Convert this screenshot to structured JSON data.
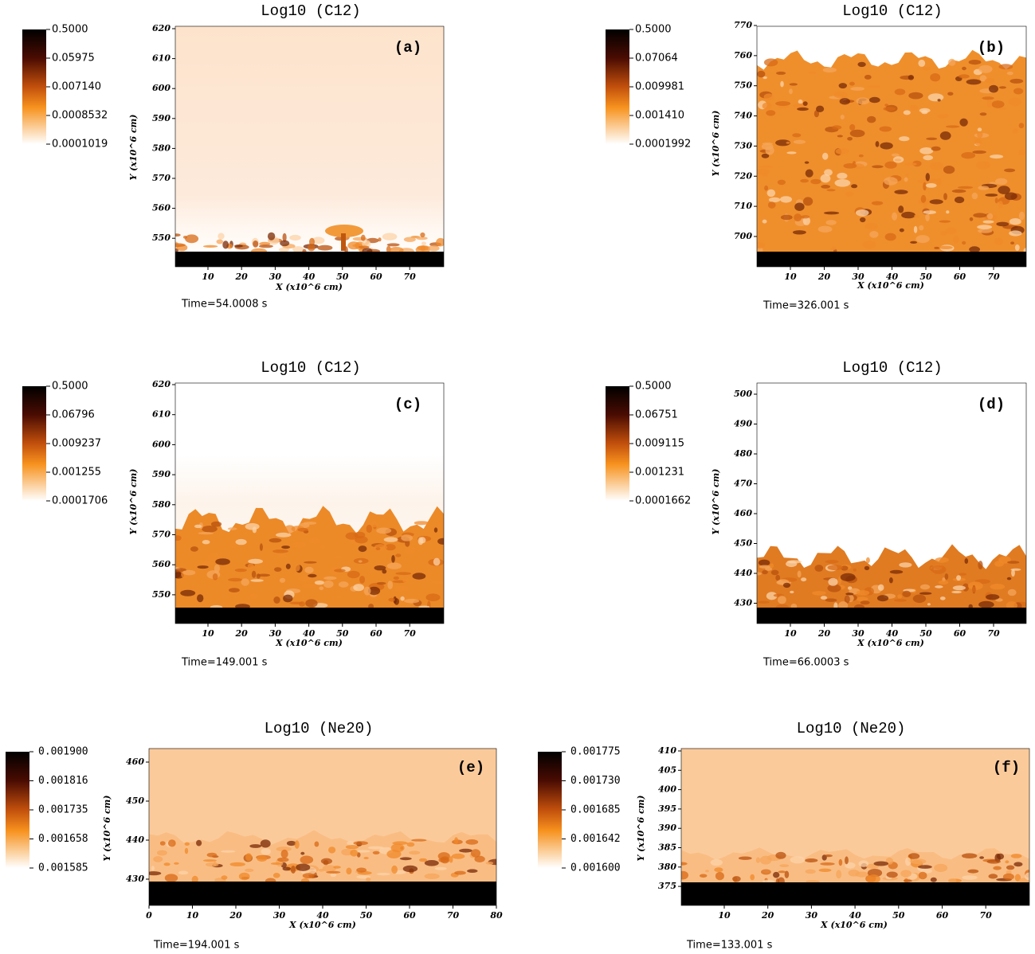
{
  "panels": [
    {
      "title": "Log10 (C12)",
      "label": "(a)",
      "time": "Time=54.0008 s",
      "x_label": "X (x10^6 cm)",
      "y_label": "Y (x10^6 cm)",
      "colorbar": [
        "0.5000",
        "0.05975",
        "0.007140",
        "0.0008532",
        "0.0001019"
      ],
      "yticks": [
        620,
        610,
        600,
        590,
        580,
        570,
        560,
        550
      ],
      "xticks": [
        10,
        20,
        30,
        40,
        50,
        60,
        70
      ]
    },
    {
      "title": "Log10 (C12)",
      "label": "(b)",
      "time": "Time=326.001 s",
      "x_label": "X (x10^6 cm)",
      "y_label": "Y (x10^6 cm)",
      "colorbar": [
        "0.5000",
        "0.07064",
        "0.009981",
        "0.001410",
        "0.0001992"
      ],
      "yticks": [
        770,
        760,
        750,
        740,
        730,
        720,
        710,
        700
      ],
      "xticks": [
        10,
        20,
        30,
        40,
        50,
        60,
        70
      ]
    },
    {
      "title": "Log10 (C12)",
      "label": "(c)",
      "time": "Time=149.001 s",
      "x_label": "X (x10^6 cm)",
      "y_label": "Y (x10^6 cm)",
      "colorbar": [
        "0.5000",
        "0.06796",
        "0.009237",
        "0.001255",
        "0.0001706"
      ],
      "yticks": [
        620,
        610,
        600,
        590,
        580,
        570,
        560,
        550
      ],
      "xticks": [
        10,
        20,
        30,
        40,
        50,
        60,
        70
      ]
    },
    {
      "title": "Log10 (C12)",
      "label": "(d)",
      "time": "Time=66.0003 s",
      "x_label": "X (x10^6 cm)",
      "y_label": "Y (x10^6 cm)",
      "colorbar": [
        "0.5000",
        "0.06751",
        "0.009115",
        "0.001231",
        "0.0001662"
      ],
      "yticks": [
        500,
        490,
        480,
        470,
        460,
        450,
        440,
        430
      ],
      "xticks": [
        10,
        20,
        30,
        40,
        50,
        60,
        70
      ]
    },
    {
      "title": "Log10 (Ne20)",
      "label": "(e)",
      "time": "Time=194.001 s",
      "x_label": "X (x10^6 cm)",
      "y_label": "Y (x10^6 cm)",
      "colorbar": [
        "0.001900",
        "0.001816",
        "0.001735",
        "0.001658",
        "0.001585"
      ],
      "yticks": [
        460,
        450,
        440,
        430
      ],
      "xticks": [
        0,
        10,
        20,
        30,
        40,
        50,
        60,
        70,
        80
      ]
    },
    {
      "title": "Log10 (Ne20)",
      "label": "(f)",
      "time": "Time=133.001 s",
      "x_label": "X (x10^6 cm)",
      "y_label": "Y (x10^6 cm)",
      "colorbar": [
        "0.001775",
        "0.001730",
        "0.001685",
        "0.001642",
        "0.001600"
      ],
      "yticks": [
        410,
        405,
        400,
        395,
        390,
        385,
        380,
        375
      ],
      "xticks": [
        10,
        20,
        30,
        40,
        50,
        60,
        70
      ]
    }
  ]
}
